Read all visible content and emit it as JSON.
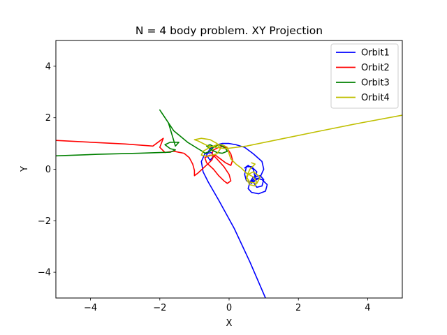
{
  "chart_data": {
    "type": "line",
    "title": "N = 4 body problem. XY Projection",
    "xlabel": "X",
    "ylabel": "Y",
    "xlim": [
      -5,
      5
    ],
    "ylim": [
      -5,
      5
    ],
    "xticks": [
      -4,
      -2,
      0,
      2,
      4
    ],
    "yticks": [
      -4,
      -2,
      0,
      2,
      4
    ],
    "grid": false,
    "legend_position": "top-right",
    "series": [
      {
        "name": "Orbit1",
        "color": "#0000ff",
        "x": [
          1.05,
          0.6,
          0.15,
          -0.3,
          -0.6,
          -0.75,
          -0.8,
          -0.7,
          -0.5,
          -0.45,
          -0.55,
          -0.65,
          -0.55,
          -0.35,
          -0.2,
          0.0,
          0.2,
          0.45,
          0.7,
          0.95,
          1.0,
          0.9,
          0.7,
          0.5,
          0.45,
          0.5,
          0.65,
          0.8,
          0.75,
          0.6,
          0.55,
          0.65,
          0.85,
          1.05,
          1.1,
          0.95,
          0.8,
          0.7,
          0.8,
          0.95,
          1.0,
          0.9,
          0.7,
          0.6,
          0.65,
          0.75,
          0.7,
          0.55,
          0.45
        ],
        "y": [
          -5.0,
          -3.6,
          -2.3,
          -1.2,
          -0.5,
          -0.1,
          0.3,
          0.6,
          0.65,
          0.5,
          0.35,
          0.55,
          0.8,
          0.95,
          1.0,
          1.0,
          0.95,
          0.85,
          0.6,
          0.3,
          0.0,
          -0.3,
          -0.5,
          -0.45,
          -0.2,
          0.1,
          0.1,
          -0.1,
          -0.35,
          -0.5,
          -0.75,
          -0.9,
          -0.95,
          -0.85,
          -0.6,
          -0.4,
          -0.35,
          -0.5,
          -0.7,
          -0.65,
          -0.4,
          -0.25,
          -0.3,
          -0.5,
          -0.55,
          -0.3,
          0.0,
          0.15,
          0.05
        ]
      },
      {
        "name": "Orbit2",
        "color": "#ff0000",
        "x": [
          -5.0,
          -4.0,
          -3.0,
          -2.2,
          -1.9,
          -2.0,
          -1.85,
          -1.6,
          -1.3,
          -1.15,
          -1.05,
          -1.0,
          -1.0,
          -0.9,
          -0.7,
          -0.5,
          -0.45,
          -0.55,
          -0.7,
          -0.65,
          -0.45,
          -0.3,
          -0.15,
          -0.05,
          0.05,
          0.0,
          -0.15,
          -0.35,
          -0.5,
          -0.45,
          -0.3,
          -0.15,
          -0.05,
          0.05,
          0.1,
          0.05,
          -0.1,
          -0.25,
          -0.35,
          -0.4,
          -0.45
        ],
        "y": [
          1.12,
          1.05,
          0.98,
          0.9,
          1.2,
          0.85,
          0.65,
          0.7,
          0.62,
          0.45,
          0.2,
          -0.05,
          -0.25,
          -0.15,
          0.1,
          0.35,
          0.5,
          0.55,
          0.45,
          0.25,
          0.0,
          -0.25,
          -0.45,
          -0.55,
          -0.45,
          -0.2,
          0.1,
          0.4,
          0.6,
          0.75,
          0.85,
          0.9,
          0.8,
          0.6,
          0.35,
          0.15,
          0.25,
          0.4,
          0.5,
          0.55,
          0.5
        ]
      },
      {
        "name": "Orbit3",
        "color": "#008000",
        "x": [
          -5.0,
          -3.8,
          -2.6,
          -1.7,
          -1.55,
          -1.7,
          -1.85,
          -1.7,
          -1.45,
          -1.55,
          -1.75,
          -2.0,
          -1.9,
          -1.6,
          -1.2,
          -0.9,
          -0.75,
          -0.7,
          -0.55,
          -0.45,
          -0.3,
          -0.2,
          -0.1,
          -0.05,
          -0.2,
          -0.35,
          -0.5,
          -0.65,
          -0.55,
          -0.4
        ],
        "y": [
          0.52,
          0.58,
          0.62,
          0.66,
          0.75,
          0.8,
          0.95,
          1.05,
          1.05,
          0.9,
          1.8,
          2.3,
          2.1,
          1.5,
          1.05,
          0.8,
          0.68,
          0.62,
          0.7,
          0.85,
          0.95,
          0.9,
          0.8,
          0.7,
          0.62,
          0.65,
          0.75,
          0.9,
          0.95,
          0.85
        ]
      },
      {
        "name": "Orbit4",
        "color": "#bfbf00",
        "x": [
          5.0,
          3.8,
          2.5,
          1.3,
          0.5,
          -0.1,
          -0.6,
          -0.9,
          -1.0,
          -0.8,
          -0.55,
          -0.35,
          -0.25,
          -0.35,
          -0.6,
          -0.8,
          -0.75,
          -0.55,
          -0.35,
          -0.2,
          -0.05,
          0.0,
          0.05,
          0.2,
          0.35,
          0.5,
          0.7,
          0.8,
          0.75,
          0.6,
          0.5,
          0.55,
          0.7,
          0.9,
          0.8,
          0.6,
          0.5,
          0.6,
          0.75,
          0.65
        ],
        "y": [
          2.1,
          1.8,
          1.45,
          1.12,
          0.9,
          0.8,
          0.9,
          1.1,
          1.15,
          1.2,
          1.15,
          1.0,
          0.8,
          0.6,
          0.5,
          0.55,
          0.7,
          0.85,
          0.95,
          0.95,
          0.85,
          0.6,
          0.4,
          0.2,
          0.05,
          -0.15,
          -0.3,
          -0.5,
          -0.65,
          -0.6,
          -0.4,
          -0.2,
          -0.1,
          -0.3,
          -0.55,
          -0.5,
          -0.3,
          0.0,
          0.2,
          0.25
        ]
      }
    ]
  }
}
